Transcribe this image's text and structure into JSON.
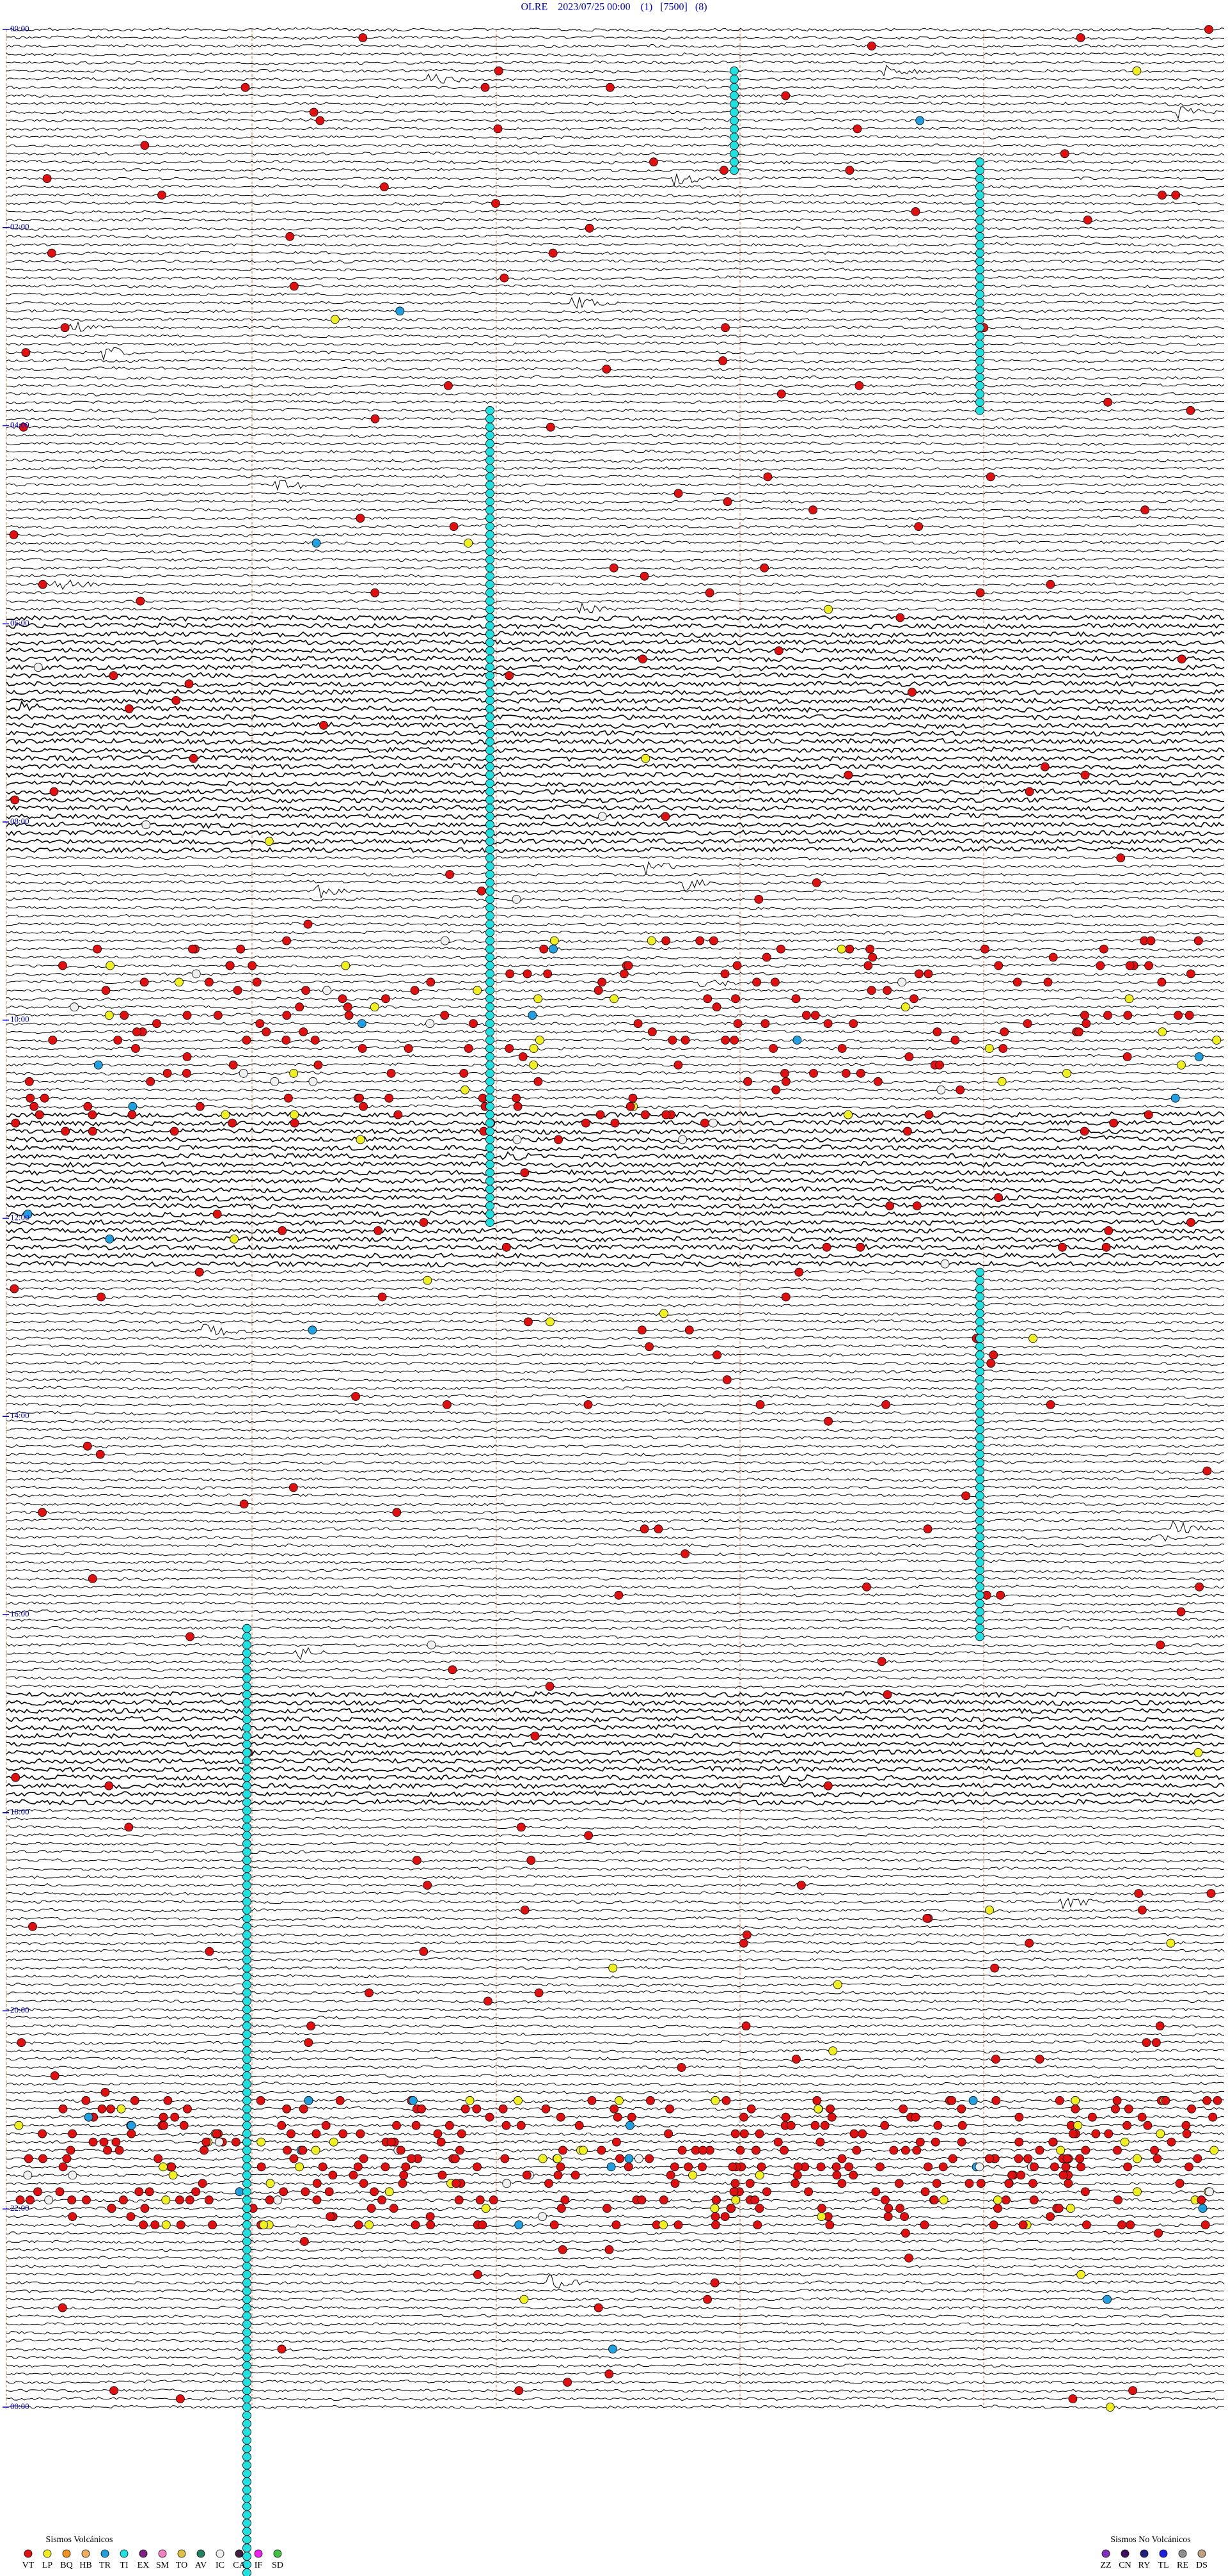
{
  "chart_data": {
    "type": "helicorder",
    "title": "OLRE    2023/07/25 00:00    (1)   [7500]   (8)",
    "hour_labels": [
      "00:00",
      "02:00",
      "04:00",
      "06:00",
      "08:00",
      "10:00",
      "12:00",
      "14:00",
      "16:00",
      "18:00",
      "20:00",
      "22:00",
      "00:00"
    ],
    "legend_volcanic": {
      "title": "Sismos Volcánicos",
      "items": [
        {
          "name": "VT",
          "color": "#e01010"
        },
        {
          "name": "LP",
          "color": "#f0f020"
        },
        {
          "name": "BQ",
          "color": "#f09020"
        },
        {
          "name": "HB",
          "color": "#f0b060"
        },
        {
          "name": "TR",
          "color": "#20a0e0"
        },
        {
          "name": "TI",
          "color": "#20e0e0"
        },
        {
          "name": "EX",
          "color": "#802080"
        },
        {
          "name": "SM",
          "color": "#f080c0"
        },
        {
          "name": "TO",
          "color": "#e0c040"
        },
        {
          "name": "AV",
          "color": "#208060"
        },
        {
          "name": "IC",
          "color": "#f0f0f0"
        },
        {
          "name": "CA",
          "color": "#402040"
        },
        {
          "name": "IF",
          "color": "#f020f0"
        },
        {
          "name": "SD",
          "color": "#40c040"
        }
      ]
    },
    "legend_non_volcanic": {
      "title": "Sismos No Volcánicos",
      "items": [
        {
          "name": "ZZ",
          "color": "#8030c0"
        },
        {
          "name": "CN",
          "color": "#401060"
        },
        {
          "name": "RY",
          "color": "#202080"
        },
        {
          "name": "TL",
          "color": "#2020e0"
        },
        {
          "name": "RE",
          "color": "#909090"
        },
        {
          "name": "DS",
          "color": "#c0a080"
        }
      ]
    }
  }
}
